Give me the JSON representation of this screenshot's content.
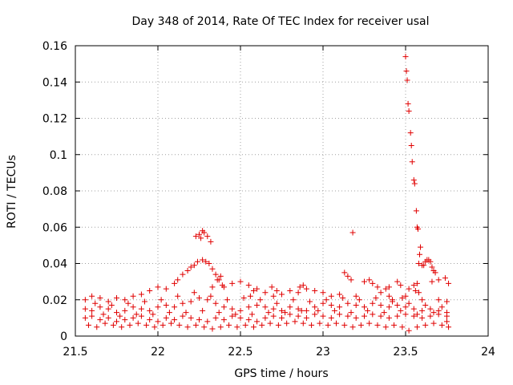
{
  "chart_data": {
    "type": "scatter",
    "title": "Day 348 of 2014, Rate Of TEC Index for receiver usal",
    "xlabel": "GPS time / hours",
    "ylabel": "ROTI / TECUs",
    "xlim": [
      21.5,
      24
    ],
    "ylim": [
      0,
      0.16
    ],
    "xticks": [
      21.5,
      22,
      22.5,
      23,
      23.5,
      24
    ],
    "xtick_labels": [
      "21.5",
      "22",
      "22.5",
      "23",
      "23.5",
      "24"
    ],
    "yticks": [
      0,
      0.02,
      0.04,
      0.06,
      0.08,
      0.1,
      0.12,
      0.14,
      0.16
    ],
    "ytick_labels": [
      "0",
      "0.02",
      "0.04",
      "0.06",
      "0.08",
      "0.1",
      "0.12",
      "0.14",
      "0.16"
    ],
    "grid": true,
    "marker": "+",
    "color": "#e00000",
    "series": [
      {
        "name": "ROTI",
        "points": [
          [
            23.5,
            0.154
          ],
          [
            23.505,
            0.146
          ],
          [
            23.51,
            0.141
          ],
          [
            23.515,
            0.128
          ],
          [
            23.52,
            0.124
          ],
          [
            23.53,
            0.112
          ],
          [
            23.535,
            0.105
          ],
          [
            23.54,
            0.096
          ],
          [
            23.55,
            0.086
          ],
          [
            23.555,
            0.084
          ],
          [
            23.565,
            0.069
          ],
          [
            23.57,
            0.06
          ],
          [
            23.575,
            0.059
          ],
          [
            23.59,
            0.049
          ],
          [
            23.585,
            0.045
          ],
          [
            23.58,
            0.04
          ],
          [
            23.6,
            0.039
          ],
          [
            23.61,
            0.039
          ],
          [
            23.62,
            0.041
          ],
          [
            23.63,
            0.042
          ],
          [
            23.64,
            0.042
          ],
          [
            23.65,
            0.041
          ],
          [
            23.66,
            0.038
          ],
          [
            23.67,
            0.036
          ],
          [
            23.68,
            0.035
          ],
          [
            23.18,
            0.057
          ],
          [
            22.23,
            0.055
          ],
          [
            22.25,
            0.056
          ],
          [
            22.27,
            0.058
          ],
          [
            22.28,
            0.057
          ],
          [
            22.3,
            0.055
          ],
          [
            22.32,
            0.052
          ],
          [
            22.26,
            0.054
          ],
          [
            22.2,
            0.038
          ],
          [
            22.22,
            0.039
          ],
          [
            22.24,
            0.041
          ],
          [
            22.27,
            0.042
          ],
          [
            22.29,
            0.041
          ],
          [
            22.31,
            0.04
          ],
          [
            22.33,
            0.037
          ],
          [
            22.35,
            0.034
          ],
          [
            22.37,
            0.031
          ],
          [
            22.39,
            0.028
          ],
          [
            22.18,
            0.036
          ],
          [
            22.15,
            0.034
          ],
          [
            22.12,
            0.031
          ],
          [
            22.1,
            0.029
          ],
          [
            23.13,
            0.035
          ],
          [
            23.15,
            0.033
          ],
          [
            23.17,
            0.031
          ],
          [
            23.25,
            0.03
          ],
          [
            23.28,
            0.031
          ],
          [
            23.3,
            0.029
          ],
          [
            23.33,
            0.027
          ],
          [
            23.45,
            0.03
          ],
          [
            23.47,
            0.028
          ],
          [
            23.52,
            0.026
          ],
          [
            23.55,
            0.028
          ],
          [
            23.57,
            0.029
          ],
          [
            23.66,
            0.03
          ],
          [
            23.7,
            0.031
          ],
          [
            23.74,
            0.032
          ],
          [
            23.76,
            0.029
          ],
          [
            21.56,
            0.02
          ],
          [
            21.6,
            0.022
          ],
          [
            21.65,
            0.021
          ],
          [
            21.7,
            0.019
          ],
          [
            21.75,
            0.021
          ],
          [
            21.8,
            0.02
          ],
          [
            21.85,
            0.022
          ],
          [
            21.9,
            0.023
          ],
          [
            21.95,
            0.025
          ],
          [
            22.0,
            0.027
          ],
          [
            22.05,
            0.026
          ],
          [
            22.4,
            0.027
          ],
          [
            22.45,
            0.029
          ],
          [
            22.5,
            0.03
          ],
          [
            22.55,
            0.028
          ],
          [
            22.6,
            0.026
          ],
          [
            22.65,
            0.024
          ],
          [
            22.7,
            0.022
          ],
          [
            22.75,
            0.023
          ],
          [
            22.8,
            0.025
          ],
          [
            22.85,
            0.024
          ],
          [
            22.9,
            0.026
          ],
          [
            22.95,
            0.025
          ],
          [
            23.0,
            0.024
          ],
          [
            23.05,
            0.022
          ],
          [
            23.1,
            0.023
          ],
          [
            23.2,
            0.022
          ],
          [
            23.35,
            0.024
          ],
          [
            23.4,
            0.022
          ],
          [
            23.42,
            0.02
          ],
          [
            23.48,
            0.021
          ],
          [
            23.5,
            0.022
          ],
          [
            23.6,
            0.02
          ],
          [
            23.7,
            0.02
          ],
          [
            23.75,
            0.019
          ],
          [
            21.56,
            0.015
          ],
          [
            21.6,
            0.014
          ],
          [
            21.65,
            0.016
          ],
          [
            21.7,
            0.015
          ],
          [
            21.75,
            0.013
          ],
          [
            21.8,
            0.014
          ],
          [
            21.85,
            0.016
          ],
          [
            21.9,
            0.015
          ],
          [
            21.95,
            0.014
          ],
          [
            22.0,
            0.016
          ],
          [
            22.05,
            0.017
          ],
          [
            22.1,
            0.016
          ],
          [
            22.15,
            0.018
          ],
          [
            22.2,
            0.019
          ],
          [
            22.25,
            0.021
          ],
          [
            22.3,
            0.02
          ],
          [
            22.35,
            0.018
          ],
          [
            22.4,
            0.016
          ],
          [
            22.45,
            0.015
          ],
          [
            22.5,
            0.014
          ],
          [
            22.55,
            0.016
          ],
          [
            22.6,
            0.017
          ],
          [
            22.65,
            0.016
          ],
          [
            22.7,
            0.015
          ],
          [
            22.75,
            0.014
          ],
          [
            22.8,
            0.016
          ],
          [
            22.85,
            0.015
          ],
          [
            22.9,
            0.014
          ],
          [
            22.95,
            0.016
          ],
          [
            23.0,
            0.018
          ],
          [
            23.05,
            0.017
          ],
          [
            23.1,
            0.016
          ],
          [
            23.15,
            0.018
          ],
          [
            23.2,
            0.017
          ],
          [
            23.25,
            0.016
          ],
          [
            23.3,
            0.018
          ],
          [
            23.35,
            0.017
          ],
          [
            23.4,
            0.016
          ],
          [
            23.45,
            0.017
          ],
          [
            23.5,
            0.016
          ],
          [
            23.55,
            0.015
          ],
          [
            23.6,
            0.014
          ],
          [
            23.65,
            0.015
          ],
          [
            23.7,
            0.014
          ],
          [
            23.75,
            0.013
          ],
          [
            21.56,
            0.01
          ],
          [
            21.6,
            0.011
          ],
          [
            21.65,
            0.009
          ],
          [
            21.7,
            0.01
          ],
          [
            21.75,
            0.008
          ],
          [
            21.8,
            0.009
          ],
          [
            21.85,
            0.01
          ],
          [
            21.9,
            0.011
          ],
          [
            21.95,
            0.009
          ],
          [
            22.0,
            0.008
          ],
          [
            22.05,
            0.01
          ],
          [
            22.1,
            0.009
          ],
          [
            22.15,
            0.011
          ],
          [
            22.2,
            0.01
          ],
          [
            22.25,
            0.009
          ],
          [
            22.3,
            0.008
          ],
          [
            22.35,
            0.01
          ],
          [
            22.4,
            0.009
          ],
          [
            22.45,
            0.011
          ],
          [
            22.5,
            0.01
          ],
          [
            22.55,
            0.009
          ],
          [
            22.6,
            0.008
          ],
          [
            22.65,
            0.01
          ],
          [
            22.7,
            0.011
          ],
          [
            22.75,
            0.01
          ],
          [
            22.8,
            0.012
          ],
          [
            22.85,
            0.011
          ],
          [
            22.9,
            0.01
          ],
          [
            22.95,
            0.012
          ],
          [
            23.0,
            0.011
          ],
          [
            23.05,
            0.01
          ],
          [
            23.1,
            0.012
          ],
          [
            23.15,
            0.011
          ],
          [
            23.2,
            0.01
          ],
          [
            23.25,
            0.011
          ],
          [
            23.3,
            0.012
          ],
          [
            23.35,
            0.011
          ],
          [
            23.4,
            0.01
          ],
          [
            23.45,
            0.011
          ],
          [
            23.5,
            0.012
          ],
          [
            23.55,
            0.011
          ],
          [
            23.6,
            0.01
          ],
          [
            23.65,
            0.011
          ],
          [
            23.7,
            0.012
          ],
          [
            23.75,
            0.011
          ],
          [
            21.58,
            0.006
          ],
          [
            21.63,
            0.005
          ],
          [
            21.68,
            0.007
          ],
          [
            21.73,
            0.006
          ],
          [
            21.78,
            0.005
          ],
          [
            21.83,
            0.006
          ],
          [
            21.88,
            0.007
          ],
          [
            21.93,
            0.006
          ],
          [
            21.98,
            0.005
          ],
          [
            22.03,
            0.006
          ],
          [
            22.08,
            0.007
          ],
          [
            22.13,
            0.006
          ],
          [
            22.18,
            0.005
          ],
          [
            22.23,
            0.006
          ],
          [
            22.28,
            0.005
          ],
          [
            22.33,
            0.004
          ],
          [
            22.38,
            0.005
          ],
          [
            22.43,
            0.006
          ],
          [
            22.48,
            0.005
          ],
          [
            22.53,
            0.006
          ],
          [
            22.58,
            0.005
          ],
          [
            22.63,
            0.006
          ],
          [
            22.68,
            0.007
          ],
          [
            22.73,
            0.006
          ],
          [
            22.78,
            0.007
          ],
          [
            22.83,
            0.008
          ],
          [
            22.88,
            0.007
          ],
          [
            22.93,
            0.006
          ],
          [
            22.98,
            0.007
          ],
          [
            23.03,
            0.006
          ],
          [
            23.08,
            0.007
          ],
          [
            23.13,
            0.006
          ],
          [
            23.18,
            0.005
          ],
          [
            23.23,
            0.006
          ],
          [
            23.28,
            0.007
          ],
          [
            23.33,
            0.006
          ],
          [
            23.38,
            0.005
          ],
          [
            23.43,
            0.006
          ],
          [
            23.48,
            0.005
          ],
          [
            23.52,
            0.003
          ],
          [
            23.57,
            0.005
          ],
          [
            23.62,
            0.006
          ],
          [
            23.67,
            0.007
          ],
          [
            23.72,
            0.006
          ],
          [
            23.76,
            0.005
          ],
          [
            21.62,
            0.018
          ],
          [
            21.67,
            0.012
          ],
          [
            21.72,
            0.017
          ],
          [
            21.77,
            0.011
          ],
          [
            21.82,
            0.018
          ],
          [
            21.87,
            0.012
          ],
          [
            21.92,
            0.019
          ],
          [
            21.97,
            0.012
          ],
          [
            22.02,
            0.02
          ],
          [
            22.07,
            0.013
          ],
          [
            22.12,
            0.022
          ],
          [
            22.17,
            0.013
          ],
          [
            22.22,
            0.024
          ],
          [
            22.27,
            0.014
          ],
          [
            22.32,
            0.022
          ],
          [
            22.37,
            0.013
          ],
          [
            22.42,
            0.02
          ],
          [
            22.47,
            0.012
          ],
          [
            22.52,
            0.021
          ],
          [
            22.57,
            0.012
          ],
          [
            22.62,
            0.02
          ],
          [
            22.67,
            0.013
          ],
          [
            22.72,
            0.018
          ],
          [
            22.77,
            0.013
          ],
          [
            22.82,
            0.02
          ],
          [
            22.87,
            0.014
          ],
          [
            22.92,
            0.019
          ],
          [
            22.97,
            0.014
          ],
          [
            23.02,
            0.02
          ],
          [
            23.07,
            0.014
          ],
          [
            23.12,
            0.021
          ],
          [
            23.17,
            0.013
          ],
          [
            23.22,
            0.02
          ],
          [
            23.27,
            0.014
          ],
          [
            23.32,
            0.021
          ],
          [
            23.37,
            0.013
          ],
          [
            23.42,
            0.019
          ],
          [
            23.47,
            0.014
          ],
          [
            23.52,
            0.018
          ],
          [
            23.57,
            0.012
          ],
          [
            23.62,
            0.017
          ],
          [
            23.67,
            0.013
          ],
          [
            23.72,
            0.016
          ],
          [
            23.75,
            0.008
          ],
          [
            22.33,
            0.027
          ],
          [
            22.36,
            0.031
          ],
          [
            22.38,
            0.033
          ],
          [
            22.56,
            0.022
          ],
          [
            22.58,
            0.025
          ],
          [
            22.69,
            0.027
          ],
          [
            22.72,
            0.025
          ],
          [
            22.86,
            0.027
          ],
          [
            22.88,
            0.028
          ],
          [
            23.38,
            0.026
          ],
          [
            23.4,
            0.027
          ],
          [
            23.56,
            0.025
          ],
          [
            23.58,
            0.024
          ]
        ]
      }
    ]
  }
}
